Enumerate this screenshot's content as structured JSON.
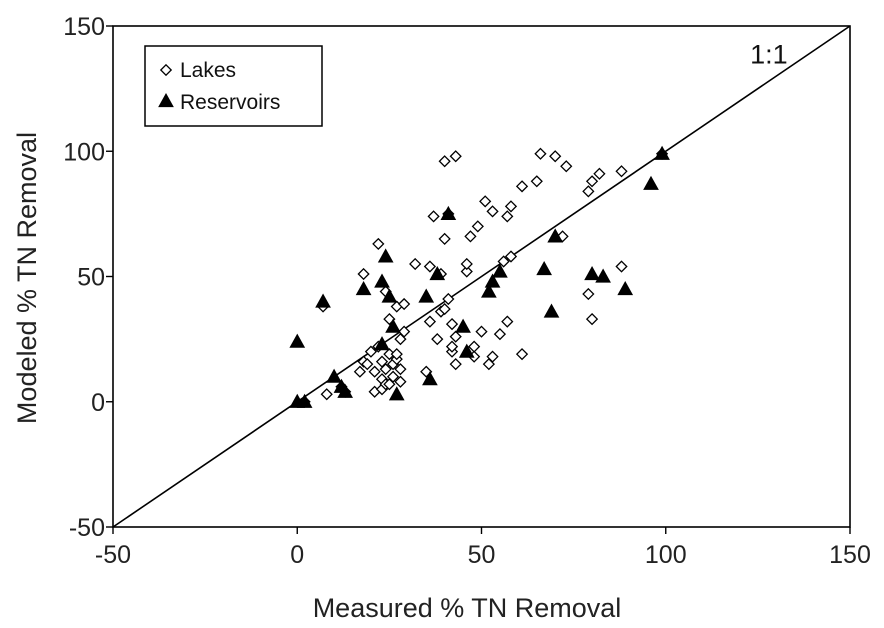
{
  "chart_data": {
    "type": "scatter",
    "title": "",
    "xlabel": "Measured % TN Removal",
    "ylabel": "Modeled % TN Removal",
    "xlim": [
      -50,
      150
    ],
    "ylim": [
      -50,
      150
    ],
    "x_ticks": [
      -50,
      0,
      50,
      100,
      150
    ],
    "y_ticks": [
      -50,
      0,
      50,
      100,
      150
    ],
    "grid": false,
    "legend": "top-left",
    "reference_line": {
      "label": "1:1",
      "from": [
        -50,
        -50
      ],
      "to": [
        150,
        150
      ]
    },
    "series": [
      {
        "name": "Lakes",
        "marker": "open-diamond",
        "color": "#000000",
        "points": [
          [
            2,
            0
          ],
          [
            7,
            38
          ],
          [
            8,
            3
          ],
          [
            12,
            6
          ],
          [
            13,
            4
          ],
          [
            17,
            12
          ],
          [
            18,
            16
          ],
          [
            18,
            51
          ],
          [
            19,
            15
          ],
          [
            20,
            20
          ],
          [
            21,
            4
          ],
          [
            21,
            12
          ],
          [
            22,
            22
          ],
          [
            22,
            63
          ],
          [
            23,
            5
          ],
          [
            23,
            9
          ],
          [
            23,
            16
          ],
          [
            24,
            7
          ],
          [
            24,
            13
          ],
          [
            24,
            44
          ],
          [
            25,
            7
          ],
          [
            25,
            19
          ],
          [
            25,
            33
          ],
          [
            26,
            10
          ],
          [
            26,
            15
          ],
          [
            27,
            17
          ],
          [
            27,
            19
          ],
          [
            27,
            38
          ],
          [
            28,
            8
          ],
          [
            28,
            13
          ],
          [
            28,
            25
          ],
          [
            29,
            28
          ],
          [
            29,
            39
          ],
          [
            32,
            55
          ],
          [
            35,
            12
          ],
          [
            36,
            32
          ],
          [
            36,
            54
          ],
          [
            37,
            74
          ],
          [
            38,
            25
          ],
          [
            39,
            51
          ],
          [
            39,
            36
          ],
          [
            40,
            37
          ],
          [
            40,
            65
          ],
          [
            40,
            96
          ],
          [
            41,
            41
          ],
          [
            41,
            75
          ],
          [
            42,
            20
          ],
          [
            42,
            22
          ],
          [
            42,
            31
          ],
          [
            43,
            15
          ],
          [
            43,
            26
          ],
          [
            43,
            98
          ],
          [
            46,
            52
          ],
          [
            46,
            55
          ],
          [
            47,
            66
          ],
          [
            48,
            18
          ],
          [
            48,
            22
          ],
          [
            49,
            70
          ],
          [
            50,
            28
          ],
          [
            51,
            80
          ],
          [
            52,
            15
          ],
          [
            53,
            18
          ],
          [
            53,
            76
          ],
          [
            55,
            27
          ],
          [
            56,
            56
          ],
          [
            57,
            32
          ],
          [
            57,
            74
          ],
          [
            58,
            78
          ],
          [
            58,
            58
          ],
          [
            61,
            19
          ],
          [
            61,
            86
          ],
          [
            65,
            88
          ],
          [
            66,
            99
          ],
          [
            70,
            98
          ],
          [
            72,
            66
          ],
          [
            73,
            94
          ],
          [
            79,
            43
          ],
          [
            79,
            84
          ],
          [
            80,
            33
          ],
          [
            80,
            88
          ],
          [
            82,
            91
          ],
          [
            88,
            54
          ],
          [
            88,
            92
          ],
          [
            99,
            99
          ]
        ]
      },
      {
        "name": "Reservoirs",
        "marker": "filled-triangle",
        "color": "#000000",
        "points": [
          [
            0,
            24
          ],
          [
            0,
            0
          ],
          [
            2,
            0
          ],
          [
            7,
            40
          ],
          [
            10,
            10
          ],
          [
            12,
            6
          ],
          [
            13,
            4
          ],
          [
            18,
            45
          ],
          [
            23,
            23
          ],
          [
            23,
            48
          ],
          [
            24,
            58
          ],
          [
            25,
            42
          ],
          [
            26,
            30
          ],
          [
            27,
            3
          ],
          [
            35,
            42
          ],
          [
            36,
            9
          ],
          [
            38,
            51
          ],
          [
            41,
            75
          ],
          [
            45,
            30
          ],
          [
            46,
            20
          ],
          [
            52,
            44
          ],
          [
            53,
            48
          ],
          [
            55,
            52
          ],
          [
            67,
            53
          ],
          [
            69,
            36
          ],
          [
            70,
            66
          ],
          [
            80,
            51
          ],
          [
            83,
            50
          ],
          [
            89,
            45
          ],
          [
            96,
            87
          ],
          [
            99,
            99
          ]
        ]
      }
    ]
  }
}
